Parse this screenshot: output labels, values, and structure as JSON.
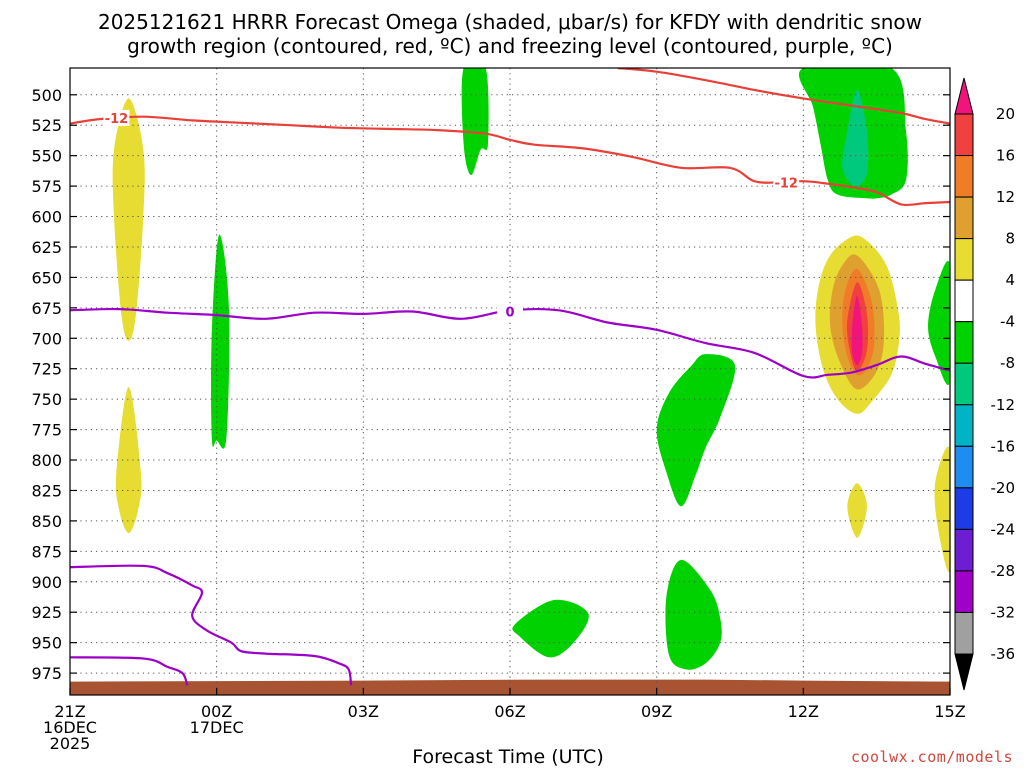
{
  "chart_data": {
    "type": "contour",
    "title_lines": [
      "2025121621 HRRR Forecast Omega (shaded, μbar/s) for KFDY with dendritic snow",
      "growth region (contoured, red, ºC) and freezing level (contoured, purple, ºC)"
    ],
    "xlabel": "Forecast Time (UTC)",
    "credit": "coolwx.com/models",
    "x_range_hours": [
      0,
      18
    ],
    "y_range_mb": [
      478,
      993
    ],
    "x_ticks": [
      {
        "hour": 0,
        "lines": [
          "21Z",
          "16DEC",
          "2025"
        ]
      },
      {
        "hour": 3,
        "lines": [
          "00Z",
          "17DEC"
        ]
      },
      {
        "hour": 6,
        "lines": [
          "03Z"
        ]
      },
      {
        "hour": 9,
        "lines": [
          "06Z"
        ]
      },
      {
        "hour": 12,
        "lines": [
          "09Z"
        ]
      },
      {
        "hour": 15,
        "lines": [
          "12Z"
        ]
      },
      {
        "hour": 18,
        "lines": [
          "15Z"
        ]
      }
    ],
    "y_ticks": [
      500,
      525,
      550,
      575,
      600,
      625,
      650,
      675,
      700,
      725,
      750,
      775,
      800,
      825,
      850,
      875,
      900,
      925,
      950,
      975
    ],
    "colorbar": {
      "labels": [
        "20",
        "16",
        "12",
        "8",
        "4",
        "-4",
        "-8",
        "-12",
        "-16",
        "-20",
        "-24",
        "-28",
        "-32",
        "-36"
      ],
      "colors": [
        "#f0147c",
        "#f04040",
        "#f07c28",
        "#e0a030",
        "#e6dc32",
        "#ffffff",
        "#00d200",
        "#00c87c",
        "#00b4c8",
        "#1e8cf0",
        "#1e3ce6",
        "#6e1ed2",
        "#a000c8",
        "#a0a0a0",
        "#000000"
      ]
    },
    "omega_regions": [
      {
        "label": "omega +4",
        "color": "#e6dc32",
        "points": [
          [
            1.2,
            503
          ],
          [
            1.5,
            545
          ],
          [
            1.5,
            600
          ],
          [
            1.35,
            680
          ],
          [
            1.2,
            702
          ],
          [
            1.05,
            680
          ],
          [
            0.9,
            600
          ],
          [
            0.9,
            545
          ]
        ]
      },
      {
        "label": "omega +4",
        "color": "#e6dc32",
        "points": [
          [
            1.2,
            740
          ],
          [
            1.45,
            810
          ],
          [
            1.4,
            840
          ],
          [
            1.2,
            860
          ],
          [
            1.0,
            840
          ],
          [
            0.95,
            810
          ]
        ]
      },
      {
        "label": "omega -4",
        "color": "#00d200",
        "points": [
          [
            3.05,
            615
          ],
          [
            3.25,
            675
          ],
          [
            3.2,
            782
          ],
          [
            3.0,
            784
          ],
          [
            2.9,
            782
          ],
          [
            2.9,
            695
          ]
        ]
      },
      {
        "label": "omega -4",
        "color": "#00d200",
        "points": [
          [
            8.05,
            478
          ],
          [
            8.5,
            478
          ],
          [
            8.55,
            540
          ],
          [
            8.4,
            545
          ],
          [
            8.2,
            566
          ],
          [
            8.05,
            540
          ]
        ]
      },
      {
        "label": "omega -4",
        "color": "#00d200",
        "points": [
          [
            9.1,
            935
          ],
          [
            9.9,
            915
          ],
          [
            10.6,
            926
          ],
          [
            10.3,
            950
          ],
          [
            9.8,
            962
          ],
          [
            9.2,
            945
          ]
        ]
      },
      {
        "label": "omega -4",
        "color": "#00d200",
        "points": [
          [
            13.0,
            713
          ],
          [
            13.6,
            722
          ],
          [
            13.3,
            765
          ],
          [
            13.0,
            790
          ],
          [
            12.8,
            812
          ],
          [
            12.5,
            838
          ],
          [
            12.2,
            810
          ],
          [
            12.0,
            775
          ],
          [
            12.25,
            745
          ],
          [
            12.7,
            723
          ]
        ]
      },
      {
        "label": "omega -4",
        "color": "#00d200",
        "points": [
          [
            12.5,
            882
          ],
          [
            13.1,
            907
          ],
          [
            13.3,
            930
          ],
          [
            13.3,
            950
          ],
          [
            13.0,
            967
          ],
          [
            12.6,
            972
          ],
          [
            12.25,
            960
          ],
          [
            12.2,
            912
          ]
        ]
      },
      {
        "label": "omega -4",
        "color": "#00d200",
        "points": [
          [
            15.0,
            478
          ],
          [
            16.8,
            478
          ],
          [
            17.1,
            530
          ],
          [
            17.1,
            570
          ],
          [
            16.8,
            582
          ],
          [
            16.5,
            585
          ],
          [
            16.3,
            585
          ],
          [
            15.7,
            582
          ],
          [
            15.5,
            570
          ],
          [
            15.35,
            540
          ],
          [
            15.2,
            510
          ]
        ]
      },
      {
        "label": "omega -8",
        "color": "#00c87c",
        "points": [
          [
            16.1,
            496
          ],
          [
            16.3,
            530
          ],
          [
            16.3,
            565
          ],
          [
            16.05,
            575
          ],
          [
            15.8,
            560
          ],
          [
            15.9,
            530
          ]
        ]
      },
      {
        "label": "omega -4",
        "color": "#00d200",
        "points": [
          [
            18.0,
            640
          ],
          [
            17.7,
            660
          ],
          [
            17.55,
            690
          ],
          [
            17.7,
            715
          ],
          [
            18.0,
            735
          ]
        ]
      },
      {
        "label": "omega +4",
        "color": "#e6dc32",
        "points": [
          [
            16.2,
            617
          ],
          [
            16.7,
            640
          ],
          [
            16.95,
            680
          ],
          [
            16.95,
            705
          ],
          [
            16.8,
            730
          ],
          [
            16.4,
            752
          ],
          [
            16.1,
            762
          ],
          [
            15.7,
            750
          ],
          [
            15.4,
            725
          ],
          [
            15.25,
            690
          ],
          [
            15.3,
            660
          ],
          [
            15.5,
            635
          ],
          [
            15.85,
            620
          ]
        ]
      },
      {
        "label": "omega +8",
        "color": "#e0a030",
        "points": [
          [
            16.1,
            632
          ],
          [
            16.55,
            660
          ],
          [
            16.65,
            700
          ],
          [
            16.5,
            727
          ],
          [
            16.1,
            742
          ],
          [
            15.75,
            720
          ],
          [
            15.55,
            690
          ],
          [
            15.6,
            660
          ],
          [
            15.8,
            640
          ]
        ]
      },
      {
        "label": "omega +12",
        "color": "#f07c28",
        "points": [
          [
            16.1,
            643
          ],
          [
            16.4,
            670
          ],
          [
            16.45,
            705
          ],
          [
            16.3,
            725
          ],
          [
            16.1,
            730
          ],
          [
            15.9,
            715
          ],
          [
            15.8,
            690
          ],
          [
            15.85,
            662
          ]
        ]
      },
      {
        "label": "omega +16",
        "color": "#f04040",
        "points": [
          [
            16.1,
            654
          ],
          [
            16.3,
            680
          ],
          [
            16.3,
            710
          ],
          [
            16.1,
            727
          ],
          [
            15.95,
            710
          ],
          [
            15.9,
            685
          ]
        ]
      },
      {
        "label": "omega +20",
        "color": "#f0147c",
        "points": [
          [
            16.1,
            665
          ],
          [
            16.2,
            690
          ],
          [
            16.2,
            712
          ],
          [
            16.1,
            722
          ],
          [
            16.0,
            712
          ],
          [
            16.0,
            690
          ]
        ]
      },
      {
        "label": "omega +4",
        "color": "#e6dc32",
        "points": [
          [
            16.1,
            819
          ],
          [
            16.3,
            838
          ],
          [
            16.1,
            864
          ],
          [
            15.9,
            838
          ]
        ]
      },
      {
        "label": "omega +4",
        "color": "#e6dc32",
        "points": [
          [
            18.0,
            792
          ],
          [
            17.7,
            818
          ],
          [
            17.75,
            855
          ],
          [
            18.0,
            890
          ]
        ]
      }
    ],
    "dgz_contours": [
      {
        "label": "-12",
        "color": "#e84038",
        "points": [
          [
            -0.05,
            524
          ],
          [
            0.6,
            520
          ],
          [
            1.5,
            518
          ],
          [
            2.5,
            521
          ],
          [
            3.5,
            523
          ],
          [
            4.5,
            525
          ],
          [
            5.5,
            527
          ],
          [
            6.5,
            528
          ],
          [
            7.5,
            529
          ],
          [
            8.5,
            532
          ],
          [
            9.0,
            537
          ],
          [
            9.5,
            541
          ],
          [
            10.5,
            544
          ],
          [
            11.5,
            551
          ],
          [
            12.5,
            560
          ],
          [
            13.5,
            560
          ],
          [
            14.0,
            571
          ],
          [
            14.5,
            572
          ],
          [
            15.0,
            571
          ],
          [
            15.5,
            573
          ],
          [
            16.0,
            576
          ],
          [
            16.5,
            580
          ],
          [
            17.0,
            590
          ],
          [
            17.5,
            589
          ],
          [
            18.05,
            588
          ]
        ]
      },
      {
        "label": "",
        "color": "#e84038",
        "points": [
          [
            11.2,
            478
          ],
          [
            12.0,
            481
          ],
          [
            13.0,
            488
          ],
          [
            14.0,
            496
          ],
          [
            15.0,
            503
          ],
          [
            16.0,
            509
          ],
          [
            17.0,
            515
          ],
          [
            17.5,
            520
          ],
          [
            18.05,
            524
          ]
        ]
      }
    ],
    "freezing_contours": [
      {
        "label": "0",
        "color": "#9c00c8",
        "points": [
          [
            -0.05,
            677
          ],
          [
            1.0,
            676
          ],
          [
            2.0,
            679
          ],
          [
            3.0,
            681
          ],
          [
            4.0,
            684
          ],
          [
            5.0,
            679
          ],
          [
            6.0,
            680
          ],
          [
            7.0,
            678
          ],
          [
            8.0,
            684
          ],
          [
            9.0,
            677
          ],
          [
            10.0,
            677
          ],
          [
            11.0,
            687
          ],
          [
            12.0,
            693
          ],
          [
            13.0,
            704
          ],
          [
            14.0,
            712
          ],
          [
            15.0,
            731
          ],
          [
            15.5,
            730
          ],
          [
            16.0,
            728
          ],
          [
            16.5,
            722
          ],
          [
            17.0,
            715
          ],
          [
            17.5,
            721
          ],
          [
            18.05,
            727
          ]
        ]
      },
      {
        "label": "",
        "color": "#9c00c8",
        "points": [
          [
            -0.05,
            888
          ],
          [
            1.5,
            887
          ],
          [
            2.0,
            893
          ],
          [
            2.5,
            903
          ],
          [
            2.7,
            909
          ],
          [
            2.5,
            928
          ],
          [
            2.8,
            940
          ],
          [
            3.3,
            950
          ],
          [
            3.5,
            957
          ],
          [
            4.0,
            959
          ],
          [
            5.0,
            961
          ],
          [
            5.5,
            967
          ],
          [
            5.7,
            972
          ],
          [
            5.75,
            985
          ]
        ]
      },
      {
        "label": "",
        "color": "#9c00c8",
        "points": [
          [
            -0.05,
            962
          ],
          [
            1.5,
            963
          ],
          [
            2.0,
            970
          ],
          [
            2.3,
            975
          ],
          [
            2.4,
            985
          ]
        ]
      }
    ],
    "ground": {
      "color": "#a85432",
      "top_mb": 982
    }
  }
}
